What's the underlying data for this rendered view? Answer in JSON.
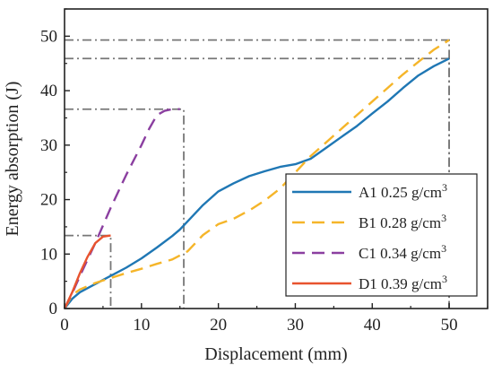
{
  "chart_data": {
    "type": "line",
    "xlabel": "Displacement (mm)",
    "ylabel": "Energy absorption (J)",
    "xlim": [
      0,
      55
    ],
    "ylim": [
      0,
      55
    ],
    "x_ticks": [
      "0",
      "10",
      "20",
      "30",
      "40",
      "50"
    ],
    "y_ticks": [
      "0",
      "10",
      "20",
      "30",
      "40",
      "50"
    ],
    "grid": false,
    "legend_position": "bottom-right",
    "series": [
      {
        "name": "A1 0.25 g/cm",
        "superscript": "3",
        "color": "#1f77b4",
        "dash": "solid",
        "x": [
          0,
          1,
          2,
          4,
          6,
          8,
          10,
          12,
          14,
          15,
          16,
          18,
          20,
          22,
          24,
          26,
          28,
          30,
          32,
          34,
          36,
          38,
          40,
          42,
          44,
          46,
          48,
          50
        ],
        "y": [
          0,
          1.8,
          3.0,
          4.5,
          6.0,
          7.5,
          9.2,
          11.2,
          13.3,
          14.5,
          16.0,
          19.0,
          21.5,
          23.0,
          24.3,
          25.2,
          26.0,
          26.5,
          27.5,
          29.5,
          31.5,
          33.5,
          35.8,
          38.0,
          40.5,
          42.8,
          44.5,
          45.9
        ]
      },
      {
        "name": "B1 0.28 g/cm",
        "superscript": "3",
        "color": "#f5b529",
        "dash": "dashed",
        "x": [
          0,
          1,
          2,
          4,
          6,
          8,
          10,
          12,
          14,
          16,
          18,
          20,
          22,
          24,
          26,
          28,
          30,
          32,
          34,
          36,
          38,
          40,
          42,
          44,
          46,
          48,
          50
        ],
        "y": [
          0,
          2.5,
          3.5,
          4.7,
          5.6,
          6.5,
          7.3,
          8.2,
          9.0,
          10.5,
          13.5,
          15.5,
          16.5,
          18.0,
          19.8,
          22.0,
          25.0,
          28.0,
          30.5,
          33.0,
          35.5,
          38.0,
          40.5,
          43.0,
          45.3,
          47.5,
          49.3
        ]
      },
      {
        "name": "C1 0.34 g/cm",
        "superscript": "3",
        "color": "#8b3fa0",
        "dash": "dashed",
        "x": [
          0,
          1,
          2,
          4,
          6,
          8,
          10,
          11,
          12,
          13,
          14,
          15
        ],
        "y": [
          0,
          2.8,
          6.0,
          12.0,
          18.5,
          24.5,
          30.0,
          33.0,
          35.5,
          36.3,
          36.6,
          36.6
        ]
      },
      {
        "name": "D1 0.39 g/cm",
        "superscript": "3",
        "color": "#e8532f",
        "dash": "solid",
        "x": [
          0,
          1,
          2,
          3,
          4,
          5,
          6
        ],
        "y": [
          0,
          3.0,
          6.5,
          9.5,
          12.0,
          13.2,
          13.4
        ]
      }
    ],
    "reference_lines": [
      {
        "x": 50,
        "y": 49.3,
        "color": "#777777"
      },
      {
        "x": 50,
        "y": 45.9,
        "color": "#777777"
      },
      {
        "x": 15.5,
        "y": 36.6,
        "color": "#777777"
      },
      {
        "x": 6,
        "y": 13.4,
        "color": "#777777"
      }
    ]
  }
}
